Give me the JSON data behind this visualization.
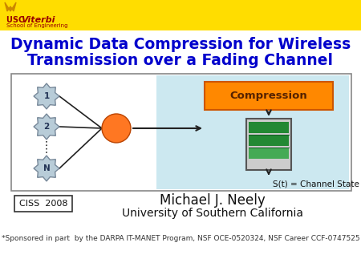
{
  "title_line1": "Dynamic Data Compression for Wireless",
  "title_line2": "Transmission over a Fading Channel",
  "title_color": "#0000cc",
  "title_fontsize": 13.5,
  "bg_color": "#ffffff",
  "header_bg": "#ffdd00",
  "usc_color": "#990000",
  "node_fill": "#b8ccd8",
  "node_border": "#778899",
  "hub_color": "#ff7722",
  "compression_fill": "#ff8800",
  "compression_text": "Compression",
  "compression_text_color": "#552200",
  "queue_fill": "#228833",
  "queue_light": "#44aa55",
  "channel_state_text": "S(t) = Channel State",
  "ciss_text": "CISS  2008",
  "author_text": "Michael J. Neely",
  "university_text": "University of Southern California",
  "sponsor_text": "*Sponsored in part  by the DARPA IT-MANET Program, NSF OCE-0520324, NSF Career CCF-0747525",
  "author_fontsize": 12,
  "university_fontsize": 10,
  "sponsor_fontsize": 6.5,
  "diagram_bg": "#cce8f0",
  "node_labels": [
    "1",
    "2",
    "N"
  ]
}
